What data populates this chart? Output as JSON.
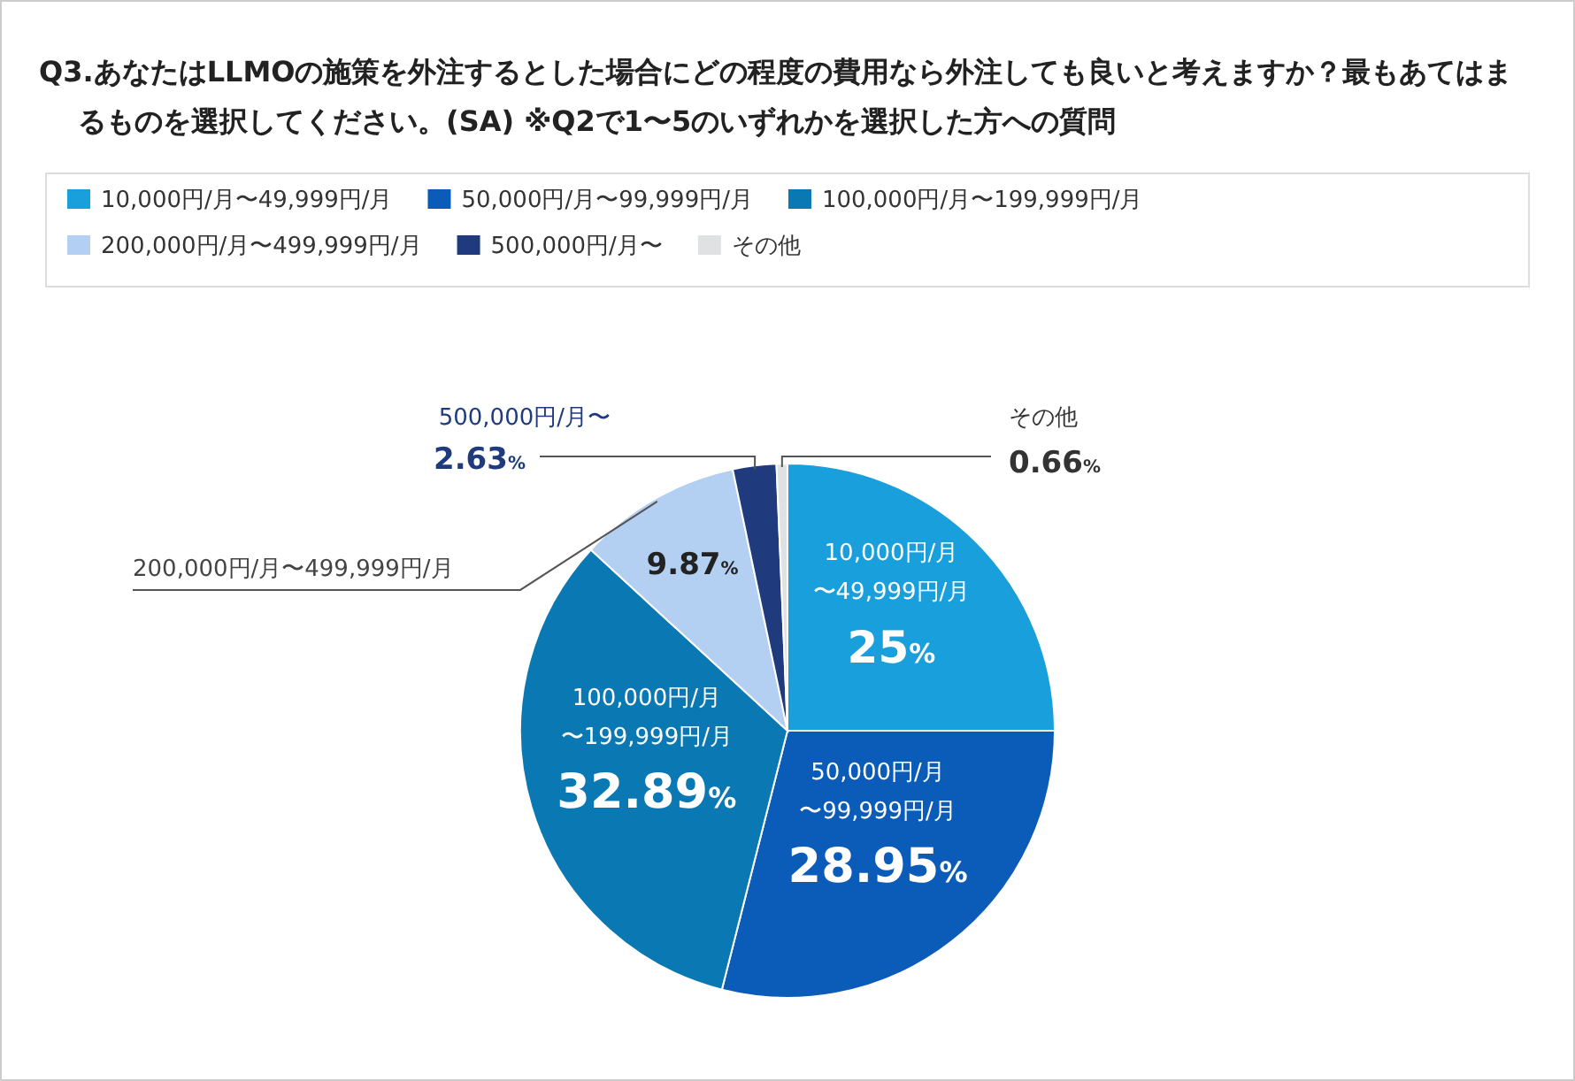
{
  "chart_data": {
    "type": "pie",
    "title": "Q3.あなたはLLMOの施策を外注するとした場合にどの程度の費用なら外注しても良いと考えますか？最もあてはまるものを選択してください。(SA) ※Q2で1〜5のいずれかを選択した方への質問",
    "categories": [
      "10,000円/月〜49,999円/月",
      "50,000円/月〜99,999円/月",
      "100,000円/月〜199,999円/月",
      "200,000円/月〜499,999円/月",
      "500,000円/月〜",
      "その他"
    ],
    "values": [
      25,
      28.95,
      32.89,
      9.87,
      2.63,
      0.66
    ],
    "colors": [
      "#199fdb",
      "#0b5cb8",
      "#0a79b3",
      "#b3cff1",
      "#1f3b7e",
      "#e0e1e3"
    ],
    "value_labels": [
      "25%",
      "28.95%",
      "32.89%",
      "9.87%",
      "2.63%",
      "0.66%"
    ],
    "legend": "top"
  }
}
